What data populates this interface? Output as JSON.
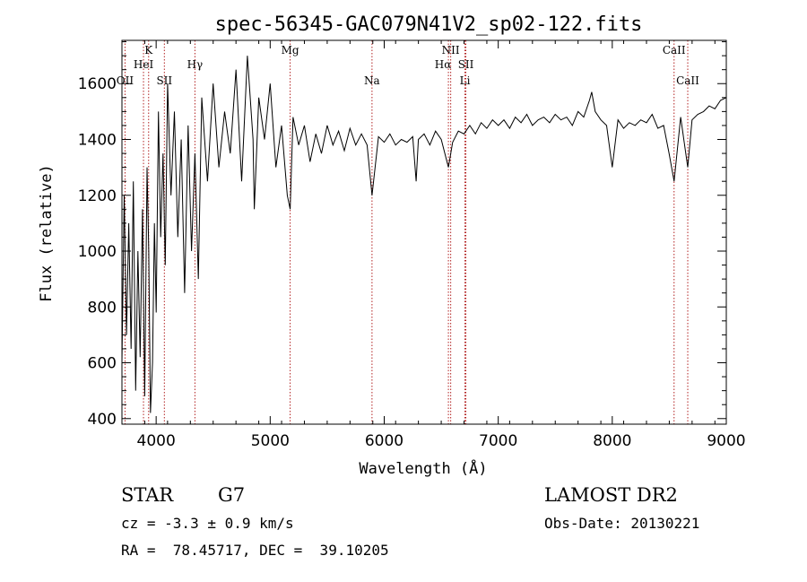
{
  "chart_data": {
    "type": "line",
    "title": "spec-56345-GAC079N41V2_sp02-122.fits",
    "xlabel": "Wavelength (Å)",
    "ylabel": "Flux (relative)",
    "xlim": [
      3700,
      9000
    ],
    "ylim": [
      380,
      1755
    ],
    "x_ticks": [
      4000,
      5000,
      6000,
      7000,
      8000,
      9000
    ],
    "y_ticks": [
      400,
      600,
      800,
      1000,
      1200,
      1400,
      1600
    ],
    "x_tick_labels": [
      "4000",
      "5000",
      "6000",
      "7000",
      "8000",
      "9000"
    ],
    "y_tick_labels": [
      "400",
      "600",
      "800",
      "1000",
      "1200",
      "1400",
      "1600"
    ],
    "line_color": "#000000",
    "marker_color": "#b22222",
    "series": [
      {
        "x": [
          3700,
          3720,
          3740,
          3760,
          3780,
          3800,
          3820,
          3840,
          3860,
          3880,
          3900,
          3920,
          3935,
          3950,
          3968,
          3985,
          4000,
          4020,
          4040,
          4060,
          4080,
          4100,
          4130,
          4160,
          4190,
          4220,
          4250,
          4280,
          4310,
          4340,
          4370,
          4400,
          4450,
          4500,
          4550,
          4600,
          4650,
          4700,
          4750,
          4800,
          4850,
          4861,
          4900,
          4950,
          5000,
          5050,
          5100,
          5150,
          5175,
          5200,
          5250,
          5300,
          5350,
          5400,
          5450,
          5500,
          5550,
          5600,
          5650,
          5700,
          5750,
          5800,
          5850,
          5893,
          5950,
          6000,
          6050,
          6100,
          6150,
          6200,
          6250,
          6280,
          6300,
          6350,
          6400,
          6450,
          6500,
          6563,
          6600,
          6650,
          6700,
          6750,
          6800,
          6850,
          6900,
          6950,
          7000,
          7050,
          7100,
          7150,
          7200,
          7250,
          7300,
          7350,
          7400,
          7450,
          7500,
          7550,
          7600,
          7650,
          7700,
          7750,
          7800,
          7820,
          7850,
          7900,
          7950,
          8000,
          8050,
          8100,
          8150,
          8200,
          8250,
          8300,
          8350,
          8400,
          8450,
          8498,
          8542,
          8600,
          8662,
          8700,
          8750,
          8800,
          8850,
          8900,
          8950,
          9000
        ],
        "y": [
          600,
          1200,
          700,
          1100,
          650,
          1250,
          500,
          1000,
          620,
          1150,
          480,
          1300,
          1000,
          420,
          600,
          1100,
          780,
          1500,
          1050,
          1350,
          950,
          1600,
          1200,
          1500,
          1050,
          1400,
          850,
          1450,
          1000,
          1350,
          900,
          1550,
          1250,
          1600,
          1300,
          1500,
          1350,
          1650,
          1250,
          1700,
          1400,
          1150,
          1550,
          1400,
          1600,
          1300,
          1450,
          1200,
          1150,
          1480,
          1380,
          1450,
          1320,
          1420,
          1350,
          1450,
          1380,
          1430,
          1360,
          1440,
          1380,
          1420,
          1380,
          1200,
          1410,
          1390,
          1420,
          1380,
          1400,
          1390,
          1410,
          1250,
          1400,
          1420,
          1380,
          1430,
          1400,
          1300,
          1390,
          1430,
          1420,
          1450,
          1420,
          1460,
          1440,
          1470,
          1450,
          1470,
          1440,
          1480,
          1460,
          1490,
          1450,
          1470,
          1480,
          1460,
          1490,
          1470,
          1480,
          1450,
          1500,
          1480,
          1540,
          1570,
          1500,
          1470,
          1450,
          1300,
          1470,
          1440,
          1460,
          1450,
          1470,
          1460,
          1490,
          1440,
          1450,
          1350,
          1250,
          1480,
          1300,
          1470,
          1490,
          1500,
          1520,
          1510,
          1540,
          1550
        ]
      }
    ],
    "markers": [
      {
        "label": "OII",
        "x": 3727
      },
      {
        "label": "K",
        "x": 3934
      },
      {
        "label": "HeI",
        "x": 3889
      },
      {
        "label": "SII",
        "x": 4072
      },
      {
        "label": "Hγ",
        "x": 4340
      },
      {
        "label": "Mg",
        "x": 5175
      },
      {
        "label": "Na",
        "x": 5893
      },
      {
        "label": "NII",
        "x": 6583
      },
      {
        "label": "Hα",
        "x": 6563
      },
      {
        "label": "SII",
        "x": 6716
      },
      {
        "label": "Li",
        "x": 6708
      },
      {
        "label": "CaII",
        "x": 8542
      },
      {
        "label": "CaII",
        "x": 8662
      }
    ]
  },
  "info": {
    "object_class": "STAR",
    "subclass": "G7",
    "cz": "cz = -3.3 ± 0.9 km/s",
    "coords": "RA =  78.45717, DEC =  39.10205",
    "survey": "LAMOST DR2",
    "obs_date": "Obs-Date: 20130221"
  }
}
